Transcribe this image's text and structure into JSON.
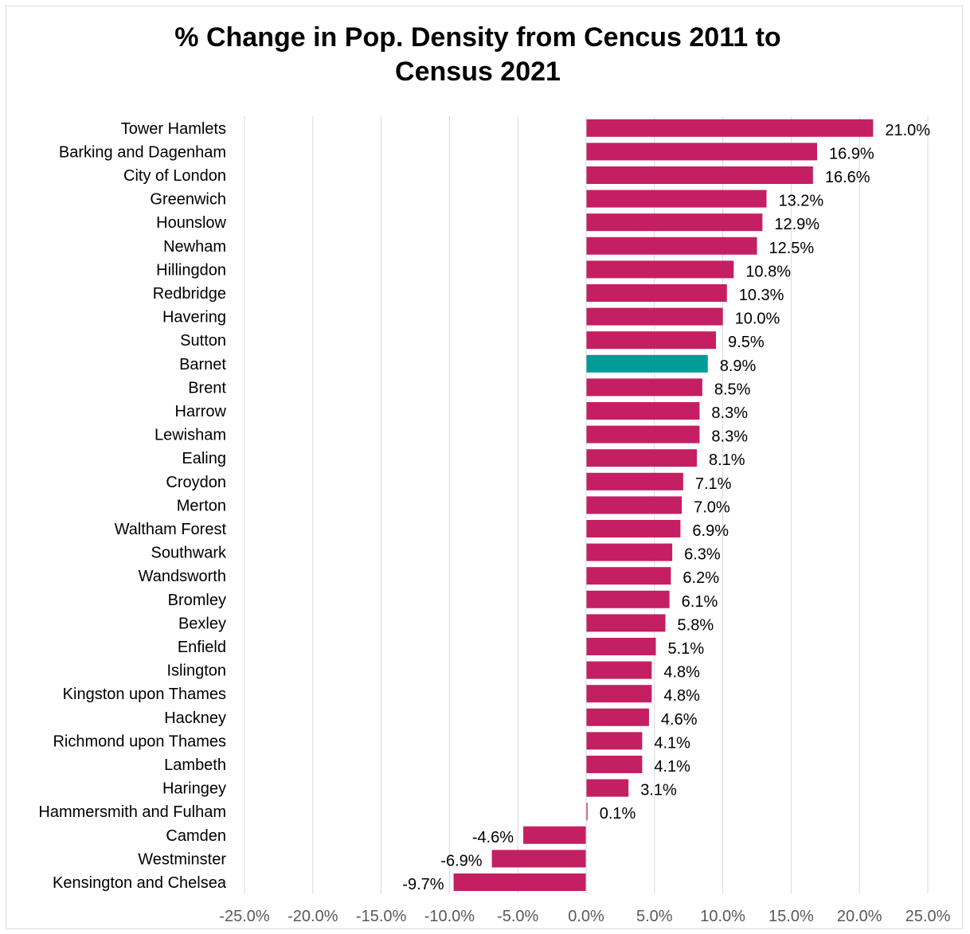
{
  "chart_data": {
    "type": "bar",
    "orientation": "horizontal",
    "title": "% Change in Pop. Density from Cencus 2011 to Census 2021",
    "xlabel": "",
    "ylabel": "",
    "xlim": [
      -25,
      25
    ],
    "x_ticks": [
      -25,
      -20,
      -15,
      -10,
      -5,
      0,
      5,
      10,
      15,
      20,
      25
    ],
    "x_tick_labels": [
      "-25.0%",
      "-20.0%",
      "-15.0%",
      "-10.0%",
      "-5.0%",
      "0.0%",
      "5.0%",
      "10.0%",
      "15.0%",
      "20.0%",
      "25.0%"
    ],
    "grid": "vertical",
    "legend": "none",
    "colors": {
      "default_bar": "#c51f64",
      "highlight_bar": "#009a97",
      "gridline": "#d9d9d9",
      "tick_text": "#595959"
    },
    "highlight_category": "Barnet",
    "categories": [
      "Tower Hamlets",
      "Barking and Dagenham",
      "City of London",
      "Greenwich",
      "Hounslow",
      "Newham",
      "Hillingdon",
      "Redbridge",
      "Havering",
      "Sutton",
      "Barnet",
      "Brent",
      "Harrow",
      "Lewisham",
      "Ealing",
      "Croydon",
      "Merton",
      "Waltham Forest",
      "Southwark",
      "Wandsworth",
      "Bromley",
      "Bexley",
      "Enfield",
      "Islington",
      "Kingston upon Thames",
      "Hackney",
      "Richmond upon Thames",
      "Lambeth",
      "Haringey",
      "Hammersmith and Fulham",
      "Camden",
      "Westminster",
      "Kensington and Chelsea"
    ],
    "values": [
      21.0,
      16.9,
      16.6,
      13.2,
      12.9,
      12.5,
      10.8,
      10.3,
      10.0,
      9.5,
      8.9,
      8.5,
      8.3,
      8.3,
      8.1,
      7.1,
      7.0,
      6.9,
      6.3,
      6.2,
      6.1,
      5.8,
      5.1,
      4.8,
      4.8,
      4.6,
      4.1,
      4.1,
      3.1,
      0.1,
      -4.6,
      -6.9,
      -9.7
    ],
    "value_labels": [
      "21.0%",
      "16.9%",
      "16.6%",
      "13.2%",
      "12.9%",
      "12.5%",
      "10.8%",
      "10.3%",
      "10.0%",
      "9.5%",
      "8.9%",
      "8.5%",
      "8.3%",
      "8.3%",
      "8.1%",
      "7.1%",
      "7.0%",
      "6.9%",
      "6.3%",
      "6.2%",
      "6.1%",
      "5.8%",
      "5.1%",
      "4.8%",
      "4.8%",
      "4.6%",
      "4.1%",
      "4.1%",
      "3.1%",
      "0.1%",
      "-4.6%",
      "-6.9%",
      "-9.7%"
    ]
  }
}
